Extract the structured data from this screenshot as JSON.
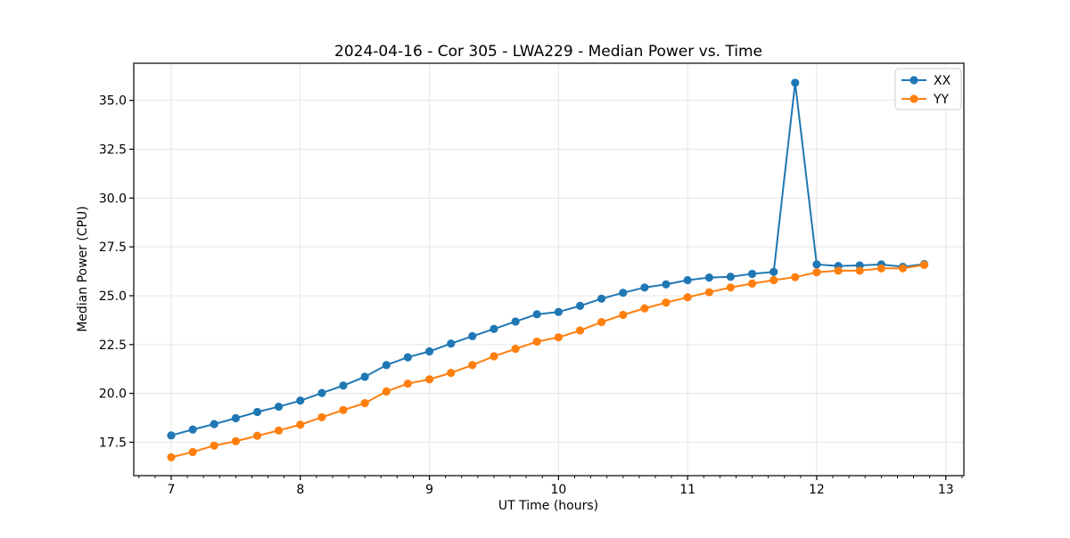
{
  "chart_data": {
    "type": "line",
    "title": "2024-04-16 - Cor 305 - LWA229 - Median Power vs. Time",
    "xlabel": "UT Time (hours)",
    "ylabel": "Median Power (CPU)",
    "xlim": [
      6.71,
      13.14
    ],
    "ylim": [
      15.79,
      36.9
    ],
    "xticks": [
      7,
      8,
      9,
      10,
      11,
      12,
      13
    ],
    "yticks": [
      17.5,
      20.0,
      22.5,
      25.0,
      27.5,
      30.0,
      32.5,
      35.0
    ],
    "minor_x_step": 0.125,
    "grid": true,
    "legend_position": "upper right",
    "x": [
      7.0,
      7.167,
      7.333,
      7.5,
      7.667,
      7.833,
      8.0,
      8.167,
      8.333,
      8.5,
      8.667,
      8.833,
      9.0,
      9.167,
      9.333,
      9.5,
      9.667,
      9.833,
      10.0,
      10.167,
      10.333,
      10.5,
      10.667,
      10.833,
      11.0,
      11.167,
      11.333,
      11.5,
      11.667,
      11.833,
      12.0,
      12.167,
      12.333,
      12.5,
      12.667,
      12.833
    ],
    "series": [
      {
        "name": "XX",
        "color": "#1f77b4",
        "values": [
          17.85,
          18.15,
          18.43,
          18.73,
          19.05,
          19.32,
          19.63,
          20.02,
          20.4,
          20.85,
          21.45,
          21.85,
          22.15,
          22.55,
          22.93,
          23.3,
          23.68,
          24.05,
          24.17,
          24.48,
          24.85,
          25.15,
          25.42,
          25.58,
          25.8,
          25.93,
          25.97,
          26.12,
          26.22,
          35.9,
          26.6,
          26.52,
          26.55,
          26.6,
          26.48,
          26.62
        ]
      },
      {
        "name": "YY",
        "color": "#ff7f0e",
        "values": [
          16.73,
          17.0,
          17.33,
          17.55,
          17.83,
          18.1,
          18.4,
          18.78,
          19.15,
          19.5,
          20.1,
          20.5,
          20.72,
          21.05,
          21.45,
          21.9,
          22.28,
          22.65,
          22.87,
          23.22,
          23.65,
          24.02,
          24.35,
          24.65,
          24.92,
          25.18,
          25.42,
          25.62,
          25.8,
          25.95,
          26.2,
          26.28,
          26.28,
          26.4,
          26.4,
          26.58
        ]
      }
    ]
  },
  "style": {
    "grid_color": "#e6e6e6",
    "spine_color": "#000000",
    "legend_border_color": "#cccccc",
    "background": "#ffffff"
  },
  "legend": {
    "items": [
      {
        "label": "XX"
      },
      {
        "label": "YY"
      }
    ]
  }
}
